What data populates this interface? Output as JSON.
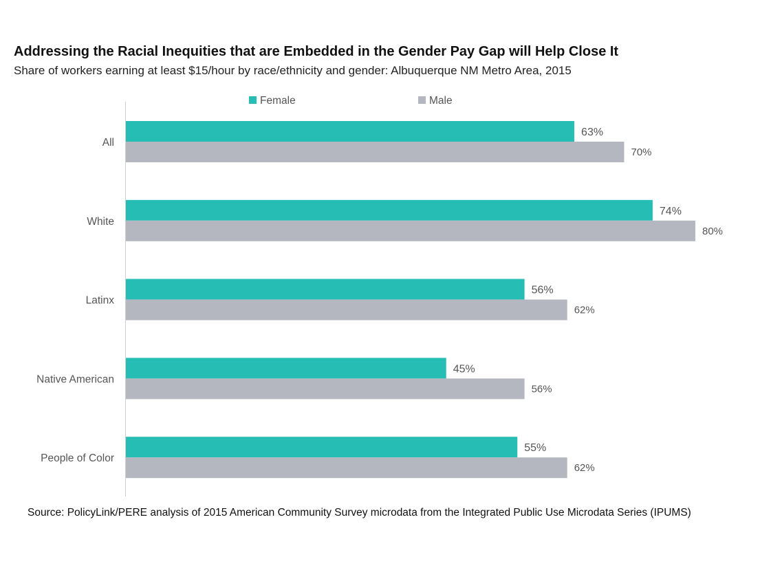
{
  "chart_data": {
    "type": "bar",
    "orientation": "horizontal",
    "title": "Addressing the Racial Inequities that are Embedded in the Gender Pay Gap will Help Close It",
    "subtitle": "Share of workers earning at least $15/hour by race/ethnicity and gender: Albuquerque NM Metro Area, 2015",
    "source": "Source: PolicyLink/PERE analysis of 2015 American Community Survey microdata from the Integrated Public Use Microdata Series (IPUMS)",
    "categories": [
      "All",
      "White",
      "Latinx",
      "Native American",
      "People of Color"
    ],
    "series": [
      {
        "name": "Female",
        "color": "#26bdb5",
        "values": [
          63,
          74,
          56,
          45,
          55
        ],
        "labels": [
          "63%",
          "74%",
          "56%",
          "45%",
          "55%"
        ]
      },
      {
        "name": "Male",
        "color": "#b4b7bf",
        "values": [
          70,
          80,
          62,
          56,
          62
        ],
        "labels": [
          "70%",
          "80%",
          "62%",
          "56%",
          "62%"
        ]
      }
    ],
    "xlim": [
      0,
      100
    ],
    "unit": "%",
    "grid": false,
    "legend_position": "top-center"
  }
}
